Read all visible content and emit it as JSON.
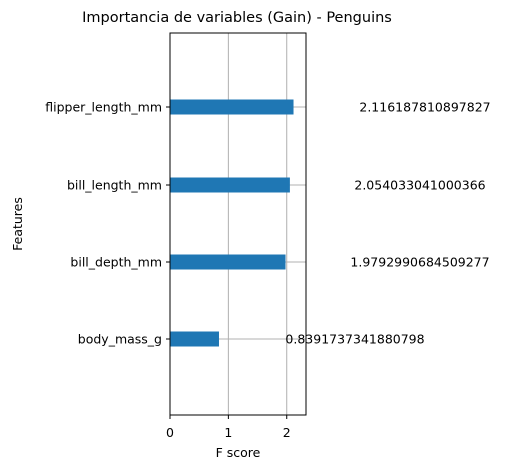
{
  "chart_data": {
    "type": "bar",
    "orientation": "horizontal",
    "title": "Importancia de variables (Gain) - Penguins",
    "xlabel": "F score",
    "ylabel": "Features",
    "categories": [
      "flipper_length_mm",
      "bill_length_mm",
      "bill_depth_mm",
      "body_mass_g"
    ],
    "values": [
      2.116187810897827,
      2.054033041000366,
      1.9792990684509277,
      0.8391737341880798
    ],
    "value_labels": [
      "2.116187810897827",
      "2.054033041000366",
      "1.9792990684509277",
      "0.8391737341880798"
    ],
    "xticks": [
      "0",
      "1",
      "2"
    ],
    "xlim": [
      0,
      2.33
    ],
    "grid": true,
    "bar_color": "#1f77b4",
    "grid_color": "#b0b0b0"
  }
}
